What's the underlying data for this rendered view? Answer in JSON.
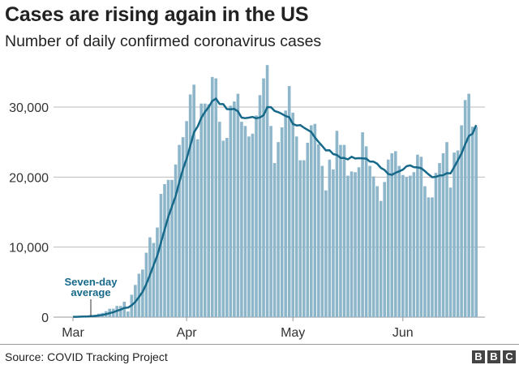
{
  "title": "Cases are rising again in the US",
  "subtitle": "Number of daily confirmed coronavirus cases",
  "source": "Source: COVID Tracking Project",
  "logo": [
    "B",
    "B",
    "C"
  ],
  "colors": {
    "bars": "#8db6ca",
    "line": "#17698a",
    "annotation": "#17698a",
    "grid": "#bbbbbb"
  },
  "chart_data": {
    "type": "bar",
    "title": "Cases are rising again in the US",
    "subtitle": "Number of daily confirmed coronavirus cases",
    "ylim": [
      0,
      36000
    ],
    "yticks": [
      {
        "value": 0,
        "label": "0"
      },
      {
        "value": 10000,
        "label": "10,000"
      },
      {
        "value": 20000,
        "label": "20,000"
      },
      {
        "value": 30000,
        "label": "30,000"
      }
    ],
    "xticks": [
      {
        "label": "Mar",
        "index": 0
      },
      {
        "label": "Apr",
        "index": 31
      },
      {
        "label": "May",
        "index": 60
      },
      {
        "label": "Jun",
        "index": 90
      }
    ],
    "grid": true,
    "values": [
      50,
      50,
      100,
      150,
      200,
      250,
      350,
      500,
      600,
      850,
      1200,
      1200,
      1600,
      1600,
      2200,
      800,
      3200,
      4600,
      6200,
      6800,
      9200,
      11400,
      10600,
      12800,
      17600,
      19000,
      19600,
      19600,
      21800,
      24600,
      25700,
      28000,
      31800,
      33200,
      25400,
      30500,
      30500,
      30400,
      34300,
      34100,
      27900,
      25200,
      25600,
      30200,
      30800,
      31900,
      27900,
      27300,
      25800,
      26200,
      28800,
      31700,
      34100,
      36000,
      27300,
      22000,
      25000,
      27100,
      29500,
      33000,
      29200,
      25800,
      22400,
      22400,
      24900,
      27400,
      27600,
      24700,
      21600,
      18100,
      22500,
      21100,
      26600,
      24600,
      24600,
      20200,
      20800,
      20700,
      21400,
      26400,
      24400,
      21600,
      20100,
      18700,
      16600,
      19300,
      22500,
      23400,
      23700,
      21600,
      20300,
      20000,
      20200,
      20700,
      23200,
      22900,
      18700,
      17100,
      17100,
      20600,
      22000,
      23400,
      25000,
      18500,
      23500,
      23800,
      27400,
      31000,
      31900,
      27200,
      27200
    ],
    "series": [
      {
        "name": "Seven-day average",
        "type": "line",
        "rolling_window": 7
      }
    ],
    "annotation": "Seven-day average"
  }
}
